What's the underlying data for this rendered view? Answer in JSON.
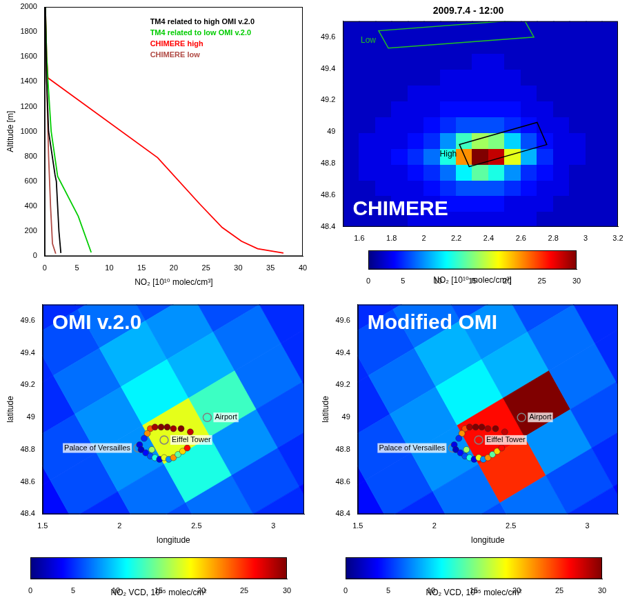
{
  "chart_data": [
    {
      "type": "line",
      "x_label": "NO₂ [10¹⁰ molec/cm³]",
      "y_label": "Altitude [m]",
      "xlim": [
        0,
        40
      ],
      "xticks": [
        0,
        5,
        10,
        15,
        20,
        25,
        30,
        35,
        40
      ],
      "ylim": [
        0,
        2000
      ],
      "yticks": [
        0,
        200,
        400,
        600,
        800,
        1000,
        1200,
        1400,
        1600,
        1800,
        2000
      ],
      "grid": false,
      "legend": "upper right",
      "series": [
        {
          "name": "TM4 related to high OMI v.2.0",
          "color": "#000000",
          "x": [
            2.5,
            2.2,
            1.8,
            1.6,
            0.6,
            0.3,
            0.1
          ],
          "values": [
            25,
            200,
            600,
            650,
            1000,
            1400,
            2000
          ]
        },
        {
          "name": "TM4 related to low OMI v.2.0",
          "color": "#00cc00",
          "x": [
            7.2,
            5.2,
            2.0,
            1.0,
            0.5,
            0.3,
            0.1
          ],
          "values": [
            30,
            320,
            640,
            1000,
            1400,
            1600,
            2000
          ]
        },
        {
          "name": "CHIMERE high",
          "color": "#ff0000",
          "x": [
            37,
            33,
            30.5,
            27.5,
            24,
            17.5,
            0.5,
            0.3,
            0.1
          ],
          "values": [
            25,
            60,
            120,
            230,
            420,
            790,
            1430,
            1600,
            2000
          ]
        },
        {
          "name": "CHIMERE low",
          "color": "#b04a44",
          "x": [
            1.7,
            1.2,
            0.9,
            0.6,
            0.4,
            0.2,
            0.1
          ],
          "values": [
            20,
            100,
            400,
            800,
            1200,
            1600,
            2000
          ]
        }
      ]
    },
    {
      "type": "heatmap",
      "title": "2009.7.4 - 12:00",
      "annotation": "CHIMERE",
      "xlim": [
        1.5,
        3.2
      ],
      "xticks": [
        1.6,
        1.8,
        2,
        2.2,
        2.4,
        2.6,
        2.8,
        3,
        3.2
      ],
      "ylim": [
        48.4,
        49.7
      ],
      "yticks": [
        48.4,
        48.6,
        48.8,
        49,
        49.2,
        49.4,
        49.6
      ],
      "grid": false,
      "x": [
        1.55,
        1.65,
        1.75,
        1.85,
        1.95,
        2.05,
        2.15,
        2.25,
        2.35,
        2.45,
        2.55,
        2.65,
        2.75,
        2.85,
        2.95,
        3.05,
        3.15
      ],
      "y": [
        48.45,
        48.55,
        48.65,
        48.75,
        48.85,
        48.95,
        49.05,
        49.15,
        49.25,
        49.35,
        49.45,
        49.55,
        49.65
      ],
      "cells": [
        [
          2,
          2,
          2,
          2,
          3,
          3,
          3,
          3,
          3,
          3,
          3,
          3,
          2,
          2,
          2,
          2,
          2
        ],
        [
          2,
          2,
          2,
          3,
          3,
          3,
          4,
          4,
          4,
          4,
          3,
          3,
          3,
          2,
          2,
          2,
          2
        ],
        [
          2,
          2,
          3,
          3,
          3,
          4,
          5,
          6,
          6,
          6,
          5,
          4,
          3,
          3,
          2,
          2,
          2
        ],
        [
          2,
          3,
          3,
          3,
          4,
          5,
          7,
          11,
          14,
          12,
          8,
          5,
          4,
          3,
          2,
          2,
          2
        ],
        [
          2,
          3,
          3,
          4,
          5,
          7,
          12,
          22,
          30,
          28,
          18,
          9,
          5,
          3,
          3,
          2,
          2
        ],
        [
          2,
          3,
          3,
          3,
          4,
          5,
          8,
          13,
          16,
          15,
          10,
          6,
          4,
          3,
          3,
          2,
          2
        ],
        [
          2,
          2,
          3,
          3,
          3,
          4,
          5,
          6,
          6,
          6,
          5,
          4,
          3,
          3,
          2,
          2,
          2
        ],
        [
          2,
          2,
          2,
          3,
          3,
          3,
          4,
          4,
          4,
          4,
          4,
          3,
          3,
          2,
          2,
          2,
          2
        ],
        [
          2,
          2,
          2,
          2,
          3,
          3,
          3,
          3,
          3,
          3,
          3,
          3,
          2,
          2,
          2,
          2,
          2
        ],
        [
          2,
          2,
          2,
          2,
          2,
          2,
          3,
          3,
          3,
          3,
          3,
          2,
          2,
          2,
          2,
          2,
          2
        ],
        [
          2,
          2,
          2,
          2,
          2,
          2,
          2,
          2,
          3,
          3,
          2,
          2,
          2,
          2,
          2,
          2,
          2
        ],
        [
          2,
          2,
          2,
          2,
          2,
          2,
          2,
          2,
          2,
          2,
          2,
          2,
          2,
          2,
          2,
          2,
          2
        ],
        [
          2,
          2,
          2,
          2,
          2,
          2,
          2,
          2,
          2,
          2,
          2,
          2,
          2,
          2,
          2,
          2,
          2
        ]
      ],
      "regions": [
        {
          "name": "Low",
          "color": "#22c022",
          "polygon": [
            [
              1.72,
              49.64
            ],
            [
              1.78,
              49.53
            ],
            [
              2.68,
              49.6
            ],
            [
              2.62,
              49.71
            ]
          ]
        },
        {
          "name": "High",
          "color": "#000000",
          "polygon": [
            [
              2.22,
              48.92
            ],
            [
              2.28,
              48.78
            ],
            [
              2.76,
              48.92
            ],
            [
              2.7,
              49.06
            ]
          ]
        }
      ],
      "colorbar": {
        "range": [
          0,
          30
        ],
        "ticks": [
          0,
          5,
          10,
          15,
          20,
          25,
          30
        ],
        "label": "NO₂ [10¹⁰ molec/cm³]"
      }
    },
    {
      "type": "map",
      "annotation": "OMI v.2.0",
      "x_label": "longitude",
      "y_label": "latitude",
      "xlim": [
        1.5,
        3.2
      ],
      "xticks": [
        1.5,
        2,
        2.5,
        3
      ],
      "ylim": [
        48.4,
        49.7
      ],
      "yticks": [
        48.4,
        48.6,
        48.8,
        49,
        49.2,
        49.4,
        49.6
      ],
      "grid": false,
      "pixel_grid": {
        "origin": [
          0.69,
          49.4
        ],
        "across": [
          0.3,
          0.17
        ],
        "along": [
          0.14,
          -0.24
        ]
      },
      "cells": [
        [
          3,
          4,
          5,
          5,
          4,
          4,
          3
        ],
        [
          4,
          5,
          6,
          7,
          6,
          5,
          4
        ],
        [
          4,
          5,
          7,
          9,
          8,
          6,
          4
        ],
        [
          4,
          6,
          8,
          11,
          9,
          7,
          5
        ],
        [
          4,
          6,
          8,
          18,
          13,
          7,
          5
        ],
        [
          4,
          5,
          7,
          12,
          8,
          6,
          4
        ],
        [
          3,
          5,
          6,
          7,
          6,
          5,
          4
        ],
        [
          3,
          4,
          5,
          5,
          5,
          4,
          3
        ]
      ],
      "stations": {
        "x": [
          2.2,
          2.23,
          2.27,
          2.31,
          2.35,
          2.4,
          2.46,
          2.18,
          2.16,
          2.13,
          2.14,
          2.17,
          2.2,
          2.23,
          2.26,
          2.29,
          2.32,
          2.35,
          2.38,
          2.41,
          2.44,
          2.21
        ],
        "y": [
          48.93,
          48.94,
          48.94,
          48.94,
          48.93,
          48.93,
          48.91,
          48.9,
          48.87,
          48.83,
          48.8,
          48.78,
          48.76,
          48.75,
          48.74,
          48.75,
          48.74,
          48.75,
          48.77,
          48.79,
          48.81,
          48.8
        ],
        "values": [
          24,
          29,
          30,
          30,
          29,
          30,
          28,
          22,
          5,
          3,
          2,
          4,
          6,
          12,
          3,
          18,
          8,
          22,
          14,
          20,
          26,
          16
        ]
      },
      "landmarks": [
        {
          "name": "Airport",
          "x": 2.57,
          "y": 49.0
        },
        {
          "name": "Eiffel Tower",
          "x": 2.29,
          "y": 48.86
        },
        {
          "name": "Palace of Versailles",
          "x": 2.12,
          "y": 48.81
        }
      ],
      "colorbar": {
        "range": [
          0,
          30
        ],
        "ticks": [
          0,
          5,
          10,
          15,
          20,
          25,
          30
        ],
        "label": "NO₂ VCD, 10¹⁵ molec/cm²"
      }
    },
    {
      "type": "map",
      "annotation": "Modified OMI",
      "x_label": "longitude",
      "y_label": "latitude",
      "xlim": [
        1.5,
        3.2
      ],
      "xticks": [
        1.5,
        2,
        2.5,
        3
      ],
      "ylim": [
        48.4,
        49.7
      ],
      "yticks": [
        48.4,
        48.6,
        48.8,
        49,
        49.2,
        49.4,
        49.6
      ],
      "grid": false,
      "pixel_grid": {
        "origin": [
          0.69,
          49.4
        ],
        "across": [
          0.3,
          0.17
        ],
        "along": [
          0.14,
          -0.24
        ]
      },
      "cells": [
        [
          3,
          4,
          5,
          5,
          4,
          4,
          3
        ],
        [
          4,
          5,
          6,
          7,
          6,
          5,
          4
        ],
        [
          4,
          5,
          7,
          9,
          8,
          6,
          4
        ],
        [
          4,
          6,
          8,
          11,
          9,
          7,
          5
        ],
        [
          4,
          6,
          8,
          26,
          30,
          7,
          5
        ],
        [
          4,
          5,
          7,
          25,
          8,
          6,
          4
        ],
        [
          3,
          5,
          6,
          7,
          6,
          5,
          4
        ],
        [
          3,
          4,
          5,
          5,
          5,
          4,
          3
        ]
      ],
      "stations": {
        "x": [
          2.2,
          2.23,
          2.27,
          2.31,
          2.35,
          2.4,
          2.46,
          2.18,
          2.16,
          2.13,
          2.14,
          2.17,
          2.2,
          2.23,
          2.26,
          2.29,
          2.32,
          2.35,
          2.38,
          2.41,
          2.44,
          2.21
        ],
        "y": [
          48.93,
          48.94,
          48.94,
          48.94,
          48.93,
          48.93,
          48.91,
          48.9,
          48.87,
          48.83,
          48.8,
          48.78,
          48.76,
          48.75,
          48.74,
          48.75,
          48.74,
          48.75,
          48.77,
          48.79,
          48.81,
          48.8
        ],
        "values": [
          24,
          29,
          30,
          30,
          29,
          30,
          28,
          22,
          5,
          3,
          2,
          4,
          6,
          12,
          3,
          18,
          8,
          22,
          14,
          20,
          26,
          16
        ]
      },
      "landmarks": [
        {
          "name": "Airport",
          "x": 2.57,
          "y": 49.0
        },
        {
          "name": "Eiffel Tower",
          "x": 2.29,
          "y": 48.86
        },
        {
          "name": "Palace of Versailles",
          "x": 2.12,
          "y": 48.81
        }
      ],
      "colorbar": {
        "range": [
          0,
          30
        ],
        "ticks": [
          0,
          5,
          10,
          15,
          20,
          25,
          30
        ],
        "label": "NO₂ VCD, 10¹⁵ molec/cm²"
      }
    }
  ]
}
